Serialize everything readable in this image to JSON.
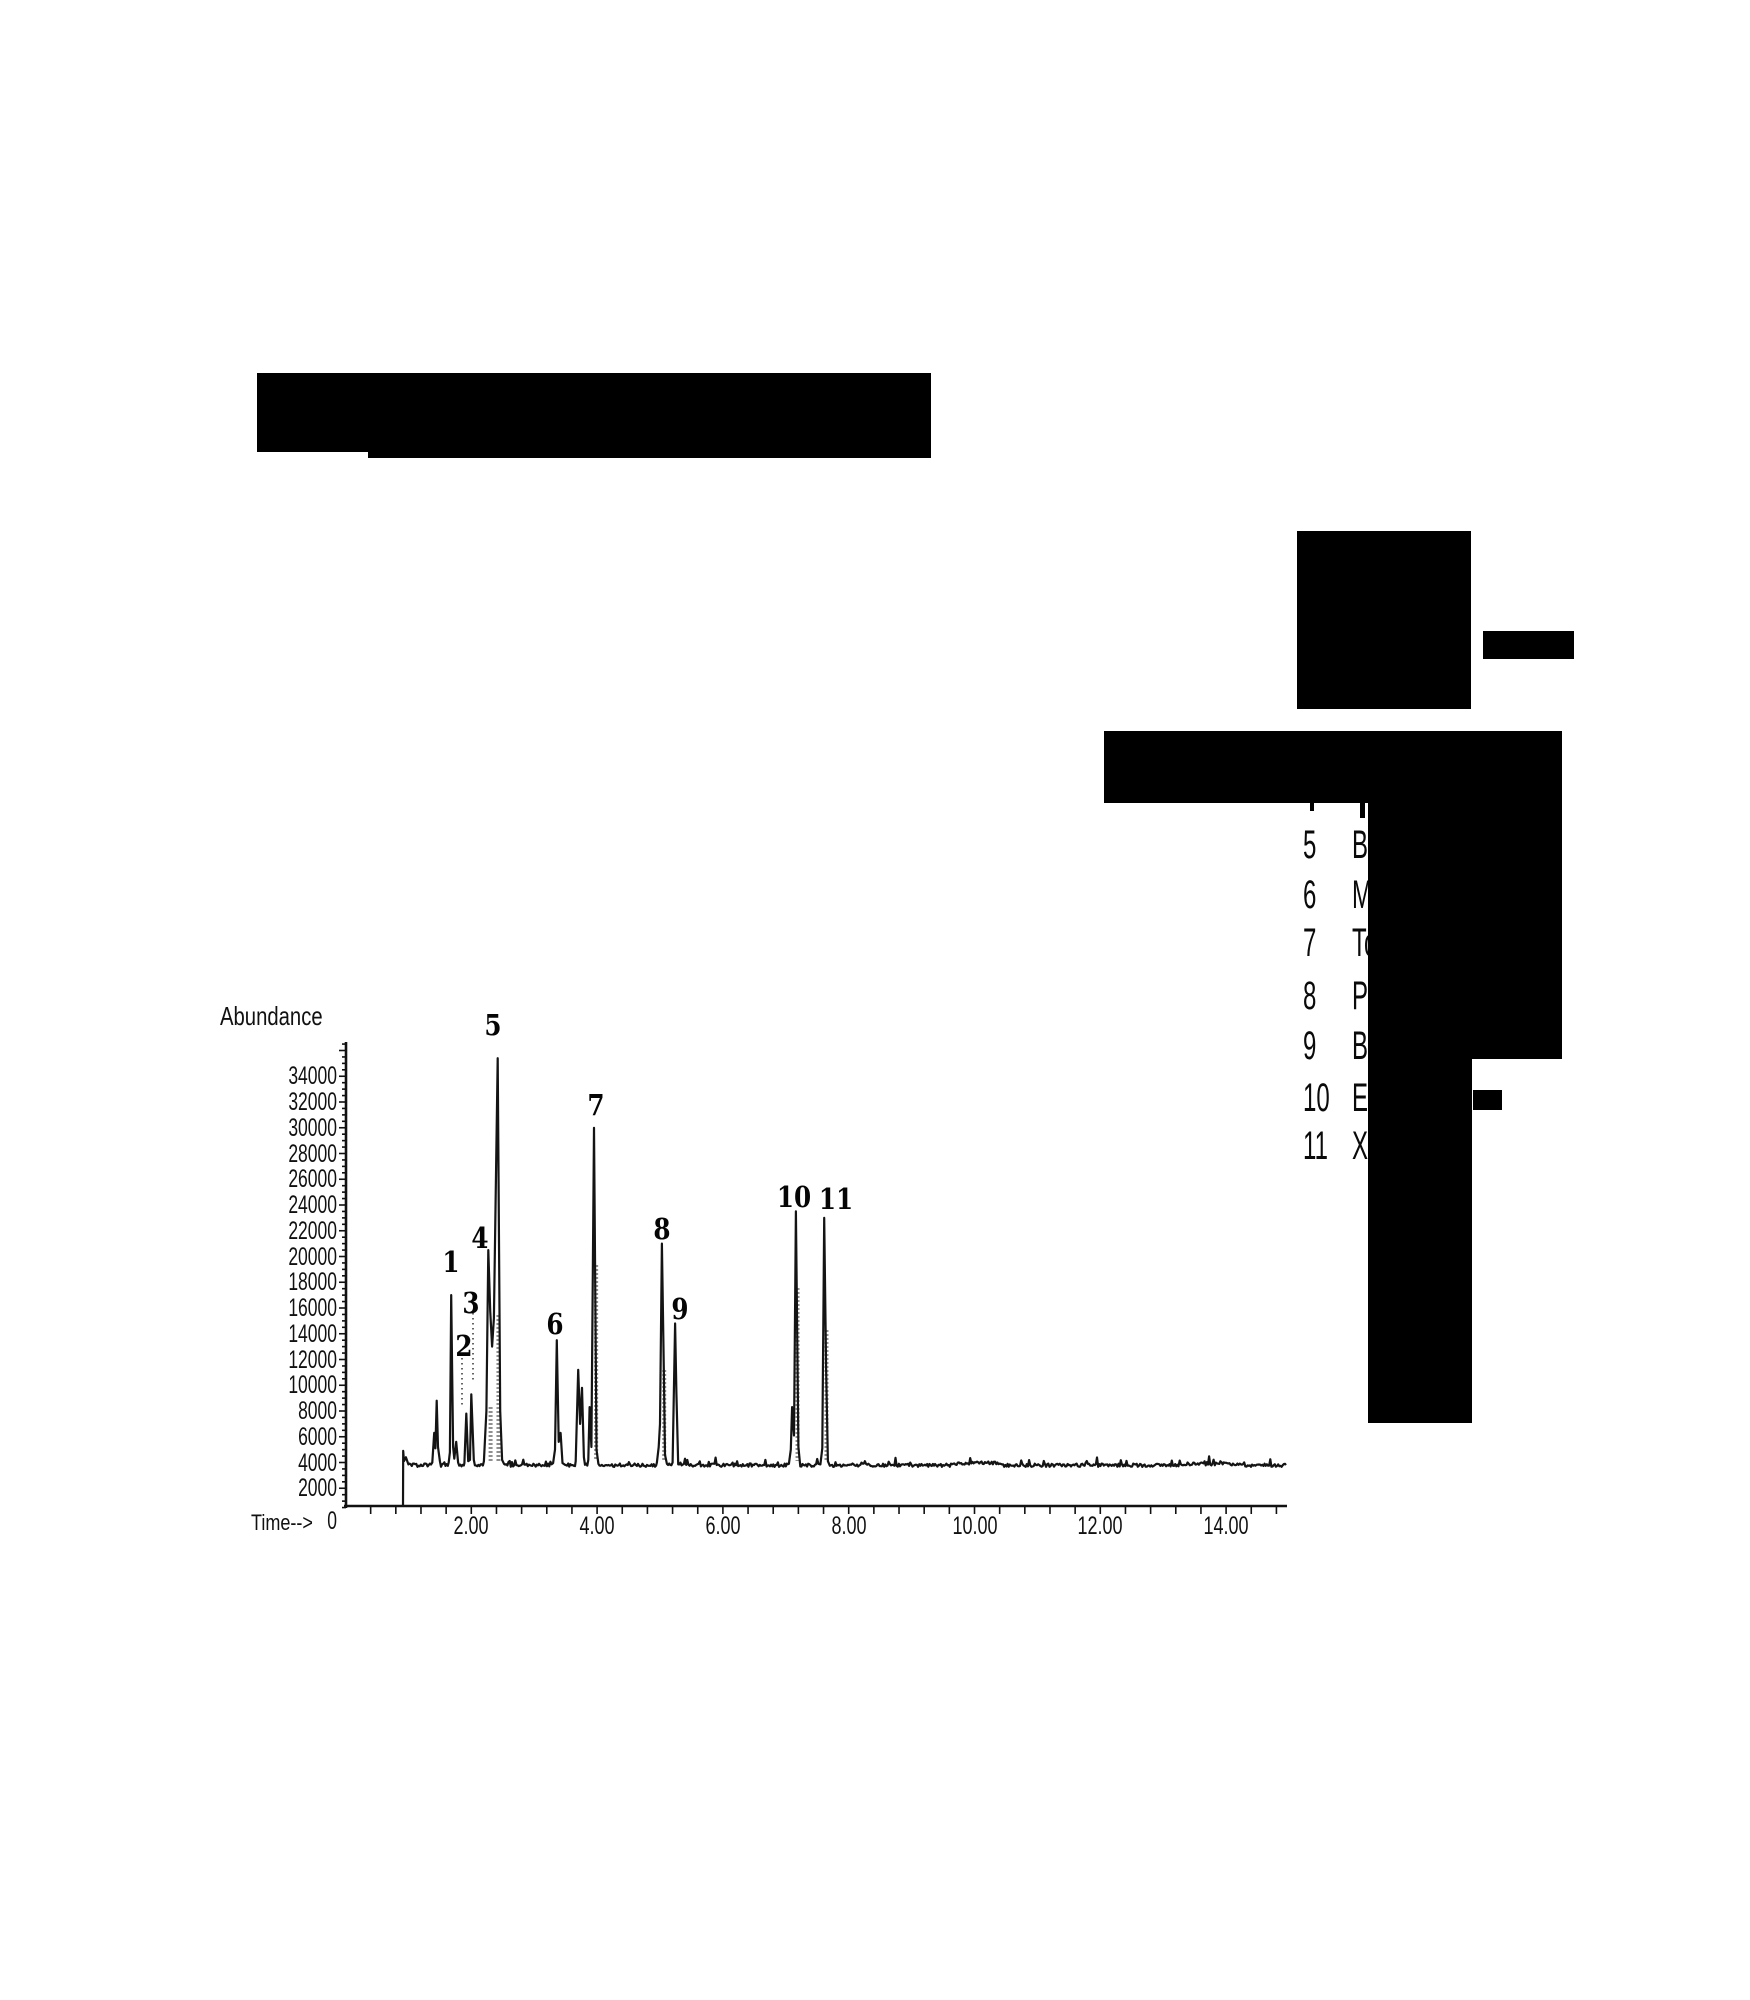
{
  "figure": {
    "description": "Gas chromatogram (scanned figure) with numbered peaks and a partially censored legend",
    "background_color": "#ffffff",
    "trace_color": "#141414",
    "redaction_color": "#000000"
  },
  "legend": {
    "items": [
      {
        "num": "5",
        "text": "B"
      },
      {
        "num": "6",
        "text": "M"
      },
      {
        "num": "7",
        "text": "To"
      },
      {
        "num": "8",
        "text": "P"
      },
      {
        "num": "9",
        "text": "B"
      },
      {
        "num": "10",
        "text": "Et"
      },
      {
        "num": "11",
        "text": "Xy"
      }
    ]
  },
  "chart_data": {
    "type": "line",
    "title": "",
    "ylabel": "Abundance",
    "xlabel": "Time-->",
    "x_axis": {
      "tick_values": [
        2,
        4,
        6,
        8,
        10,
        12,
        14
      ],
      "tick_labels": [
        "2.00",
        "4.00",
        "6.00",
        "8.00",
        "10.00",
        "12.00",
        "14.00"
      ],
      "range": [
        0,
        14.97
      ],
      "minor_tick_step": 0.4
    },
    "y_axis": {
      "tick_values": [
        34000,
        32000,
        30000,
        28000,
        26000,
        24000,
        22000,
        20000,
        18000,
        16000,
        14000,
        12000,
        10000,
        8000,
        6000,
        4000,
        2000
      ],
      "origin_label": "0",
      "range": [
        0,
        36500
      ],
      "minor_tick_step": 500
    },
    "grid": false,
    "baseline_abundance": 3800,
    "peaks": [
      {
        "n": "1",
        "t": 1.68,
        "abundance": 17000
      },
      {
        "n": "2",
        "t": 1.92,
        "abundance": 7800
      },
      {
        "n": "3",
        "t": 2.0,
        "abundance": 9300
      },
      {
        "n": "4",
        "t": 2.27,
        "abundance": 20500
      },
      {
        "n": "5",
        "t": 2.42,
        "abundance": 35400
      },
      {
        "n": "6",
        "t": 3.36,
        "abundance": 13500
      },
      {
        "n": "7",
        "t": 3.95,
        "abundance": 30000
      },
      {
        "n": "8",
        "t": 5.03,
        "abundance": 21000
      },
      {
        "n": "9",
        "t": 5.24,
        "abundance": 14800
      },
      {
        "n": "10",
        "t": 7.16,
        "abundance": 23500
      },
      {
        "n": "11",
        "t": 7.61,
        "abundance": 23000
      }
    ],
    "unlabeled_features": [
      {
        "t": 0.92,
        "abundance": 4900
      },
      {
        "t": 1.45,
        "abundance": 8800
      },
      {
        "t": 1.76,
        "abundance": 5600
      },
      {
        "t": 3.42,
        "abundance": 6300
      },
      {
        "t": 3.7,
        "abundance": 11200
      },
      {
        "t": 3.76,
        "abundance": 9800
      },
      {
        "t": 3.88,
        "abundance": 8300
      },
      {
        "t": 7.1,
        "abundance": 8300
      }
    ],
    "trace_anchors": [
      [
        0.914,
        600
      ],
      [
        0.918,
        4900
      ],
      [
        0.93,
        4100
      ],
      [
        0.96,
        4400
      ],
      [
        1.0,
        3850
      ],
      [
        1.38,
        4000
      ],
      [
        1.41,
        6300
      ],
      [
        1.43,
        5100
      ],
      [
        1.45,
        8800
      ],
      [
        1.47,
        5200
      ],
      [
        1.5,
        4100
      ],
      [
        1.64,
        4000
      ],
      [
        1.66,
        4800
      ],
      [
        1.68,
        17000
      ],
      [
        1.71,
        5200
      ],
      [
        1.73,
        4300
      ],
      [
        1.76,
        5600
      ],
      [
        1.79,
        4000
      ],
      [
        1.89,
        3950
      ],
      [
        1.92,
        7800
      ],
      [
        1.95,
        4100
      ],
      [
        1.98,
        4200
      ],
      [
        2.0,
        9300
      ],
      [
        2.04,
        4200
      ],
      [
        2.2,
        4100
      ],
      [
        2.24,
        8000
      ],
      [
        2.27,
        20500
      ],
      [
        2.3,
        15800
      ],
      [
        2.33,
        13000
      ],
      [
        2.36,
        15200
      ],
      [
        2.42,
        35400
      ],
      [
        2.46,
        8000
      ],
      [
        2.49,
        4200
      ],
      [
        2.52,
        3900
      ],
      [
        3.3,
        3950
      ],
      [
        3.33,
        5000
      ],
      [
        3.36,
        13500
      ],
      [
        3.39,
        5600
      ],
      [
        3.42,
        6300
      ],
      [
        3.45,
        3950
      ],
      [
        3.66,
        4100
      ],
      [
        3.7,
        11200
      ],
      [
        3.73,
        7000
      ],
      [
        3.76,
        9800
      ],
      [
        3.79,
        4400
      ],
      [
        3.86,
        4200
      ],
      [
        3.88,
        8300
      ],
      [
        3.91,
        5200
      ],
      [
        3.95,
        30000
      ],
      [
        3.99,
        5000
      ],
      [
        4.02,
        3900
      ],
      [
        4.95,
        4000
      ],
      [
        4.98,
        5200
      ],
      [
        5.0,
        7000
      ],
      [
        5.03,
        21000
      ],
      [
        5.06,
        11300
      ],
      [
        5.08,
        4600
      ],
      [
        5.11,
        3900
      ],
      [
        5.2,
        4000
      ],
      [
        5.24,
        14800
      ],
      [
        5.26,
        9400
      ],
      [
        5.29,
        3850
      ],
      [
        7.05,
        3900
      ],
      [
        7.08,
        5000
      ],
      [
        7.1,
        8300
      ],
      [
        7.13,
        6100
      ],
      [
        7.16,
        23500
      ],
      [
        7.2,
        5200
      ],
      [
        7.23,
        3700
      ],
      [
        7.55,
        3850
      ],
      [
        7.58,
        5100
      ],
      [
        7.61,
        23000
      ],
      [
        7.64,
        11300
      ],
      [
        7.67,
        4100
      ],
      [
        7.7,
        3750
      ],
      [
        14.95,
        3800
      ]
    ]
  }
}
